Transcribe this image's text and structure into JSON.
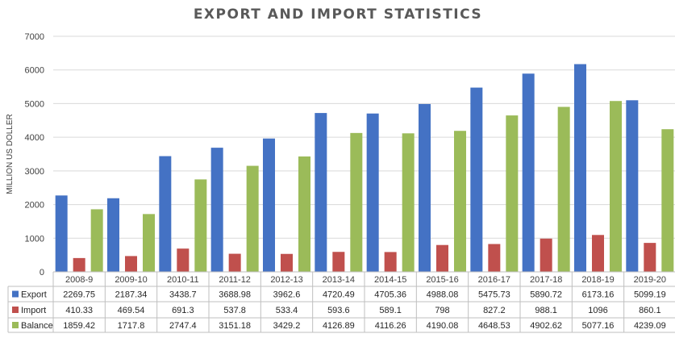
{
  "chart_data": {
    "type": "bar",
    "title": "EXPORT AND IMPORT STATISTICS",
    "xlabel": "",
    "ylabel": "MILLION US DOLLER",
    "ylim": [
      0,
      7000
    ],
    "yticks": [
      0,
      1000,
      2000,
      3000,
      4000,
      5000,
      6000,
      7000
    ],
    "grid": true,
    "legend": "data-table-bottom",
    "categories": [
      "2008-9",
      "2009-10",
      "2010-11",
      "2011-12",
      "2012-13",
      "2013-14",
      "2014-15",
      "2015-16",
      "2016-17",
      "2017-18",
      "2018-19",
      "2019-20"
    ],
    "series": [
      {
        "name": "Export",
        "color": "#4472c4",
        "values": [
          2269.75,
          2187.34,
          3438.7,
          3688.98,
          3962.6,
          4720.49,
          4705.36,
          4988.08,
          5475.73,
          5890.72,
          6173.16,
          5099.19
        ],
        "labels": [
          "2269.75",
          "2187.34",
          "3438.7",
          "3688.98",
          "3962.6",
          "4720.49",
          "4705.36",
          "4988.08",
          "5475.73",
          "5890.72",
          "6173.16",
          "5099.19"
        ]
      },
      {
        "name": "Import",
        "color": "#c0504d",
        "values": [
          410.33,
          469.54,
          691.3,
          537.8,
          533.4,
          593.6,
          589.1,
          798,
          827.2,
          988.1,
          1096,
          860.1
        ],
        "labels": [
          "410.33",
          "469.54",
          "691.3",
          "537.8",
          "533.4",
          "593.6",
          "589.1",
          "798",
          "827.2",
          "988.1",
          "1096",
          "860.1"
        ]
      },
      {
        "name": "Balance",
        "color": "#9bbb59",
        "values": [
          1859.42,
          1717.8,
          2747.4,
          3151.18,
          3429.2,
          4126.89,
          4116.26,
          4190.08,
          4648.53,
          4902.62,
          5077.16,
          4239.09
        ],
        "labels": [
          "1859.42",
          "1717.8",
          "2747.4",
          "3151.18",
          "3429.2",
          "4126.89",
          "4116.26",
          "4190.08",
          "4648.53",
          "4902.62",
          "5077.16",
          "4239.09"
        ]
      }
    ]
  }
}
